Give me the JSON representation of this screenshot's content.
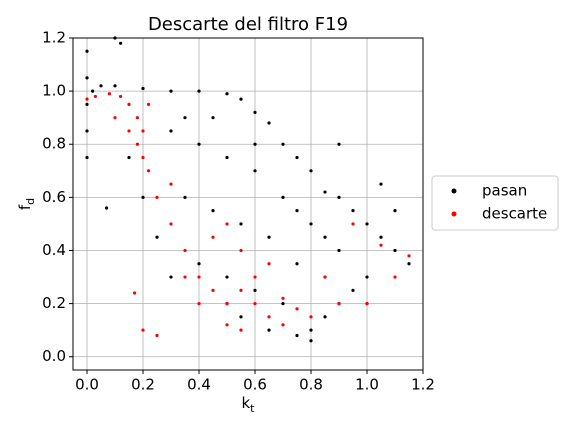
{
  "chart_data": {
    "type": "scatter",
    "title": "Descarte del filtro F19",
    "x_label": {
      "main": "k",
      "subscript": "t"
    },
    "y_label": {
      "main": "f",
      "subscript": "d"
    },
    "xlim": [
      -0.05,
      1.2
    ],
    "ylim": [
      -0.05,
      1.2
    ],
    "xticks": [
      {
        "value": 0,
        "label": "0.0"
      },
      0.2,
      0.4,
      0.6,
      0.8,
      {
        "value": 1,
        "label": "1.0"
      },
      1.2
    ],
    "yticks": [
      {
        "value": 0,
        "label": "0.0"
      },
      0.2,
      0.4,
      0.6,
      0.8,
      {
        "value": 1,
        "label": "1.0"
      },
      1.2
    ],
    "grid": true,
    "legend": "right outside",
    "series": [
      {
        "name": "pasan",
        "color": "#000000",
        "x": [
          0.0,
          0.0,
          0.0,
          0.0,
          0.0,
          0.02,
          0.05,
          0.1,
          0.12,
          0.1,
          0.2,
          0.3,
          0.4,
          0.5,
          0.55,
          0.6,
          0.65,
          0.7,
          0.75,
          0.8,
          0.85,
          0.9,
          0.95,
          1.0,
          1.05,
          1.1,
          1.15,
          0.3,
          0.4,
          0.5,
          0.6,
          0.7,
          0.8,
          0.9,
          1.0,
          0.35,
          0.45,
          0.55,
          0.65,
          0.75,
          0.85,
          0.95,
          0.3,
          0.4,
          0.5,
          0.6,
          0.7,
          0.8,
          0.8,
          0.75,
          0.85,
          0.9,
          0.25,
          0.2,
          0.15,
          0.5,
          0.55,
          0.65,
          0.07,
          0.9,
          1.05,
          1.1,
          0.35,
          0.45,
          0.6,
          0.75,
          0.85,
          1.0
        ],
        "values": [
          1.15,
          1.05,
          0.95,
          0.85,
          0.75,
          1.0,
          1.02,
          1.2,
          1.18,
          1.02,
          1.01,
          1.0,
          1.0,
          0.99,
          0.97,
          0.92,
          0.88,
          0.8,
          0.75,
          0.7,
          0.62,
          0.6,
          0.55,
          0.5,
          0.45,
          0.4,
          0.35,
          0.85,
          0.8,
          0.75,
          0.7,
          0.6,
          0.5,
          0.4,
          0.3,
          0.6,
          0.55,
          0.5,
          0.45,
          0.35,
          0.3,
          0.25,
          0.3,
          0.35,
          0.3,
          0.25,
          0.2,
          0.1,
          0.06,
          0.08,
          0.15,
          0.2,
          0.45,
          0.6,
          0.75,
          0.2,
          0.15,
          0.1,
          0.56,
          0.8,
          0.65,
          0.55,
          0.9,
          0.9,
          0.8,
          0.55,
          0.45,
          0.2
        ]
      },
      {
        "name": "descarte",
        "color": "#ff0000",
        "x": [
          0.0,
          0.03,
          0.08,
          0.12,
          0.15,
          0.18,
          0.2,
          0.15,
          0.2,
          0.18,
          0.22,
          0.25,
          0.3,
          0.35,
          0.4,
          0.45,
          0.4,
          0.5,
          0.55,
          0.6,
          0.65,
          0.7,
          0.6,
          0.65,
          0.55,
          0.5,
          0.45,
          0.7,
          0.75,
          0.5,
          0.55,
          0.35,
          0.25,
          0.17,
          0.8,
          0.9,
          1.0,
          1.1,
          1.15,
          1.05,
          0.95,
          0.85,
          0.2,
          0.3,
          0.1,
          0.22
        ],
        "values": [
          0.97,
          0.98,
          0.99,
          0.98,
          0.95,
          0.9,
          0.85,
          0.85,
          0.75,
          0.8,
          0.7,
          0.6,
          0.5,
          0.4,
          0.3,
          0.25,
          0.2,
          0.2,
          0.25,
          0.2,
          0.15,
          0.22,
          0.3,
          0.35,
          0.4,
          0.5,
          0.45,
          0.12,
          0.18,
          0.12,
          0.1,
          0.3,
          0.08,
          0.24,
          0.15,
          0.2,
          0.2,
          0.3,
          0.38,
          0.42,
          0.5,
          0.3,
          0.1,
          0.65,
          0.9,
          0.95
        ]
      }
    ]
  }
}
